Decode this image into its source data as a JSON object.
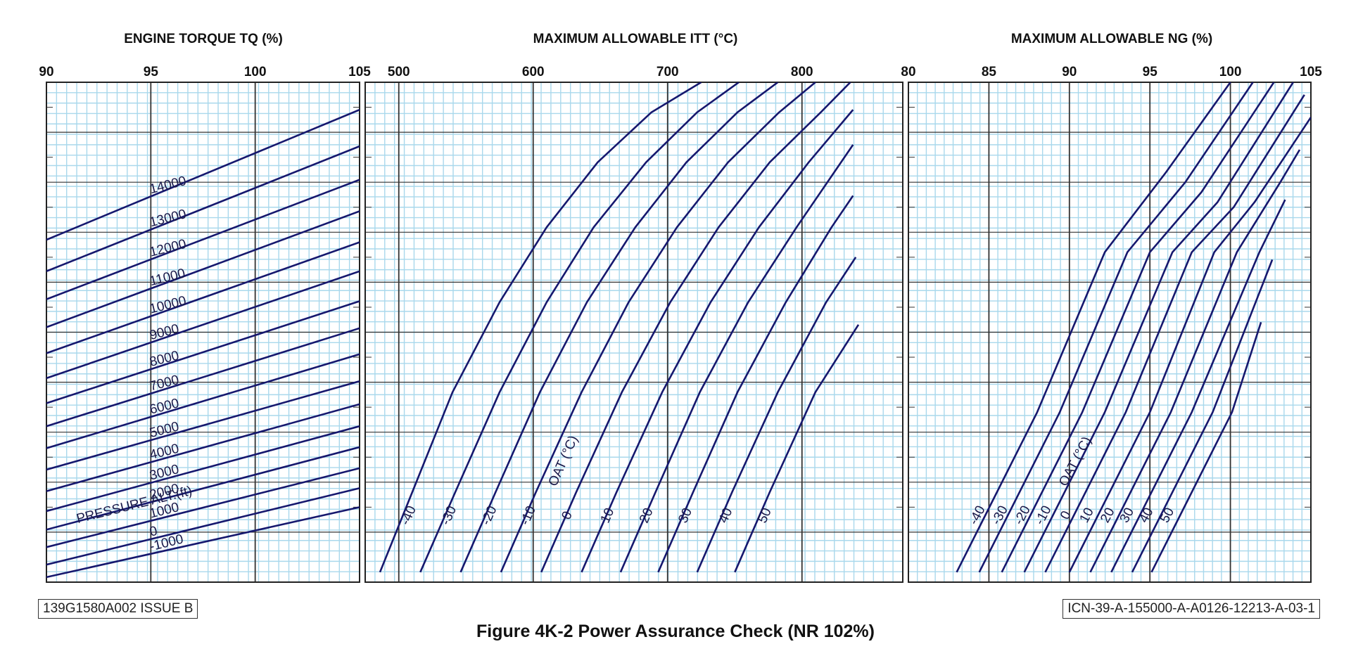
{
  "figure": {
    "caption": "Figure 4K-2  Power Assurance Check (NR 102%)",
    "doc_number": "139G1580A002 ISSUE B",
    "icn": "ICN-39-A-155000-A-A0126-12213-A-03-1"
  },
  "colors": {
    "curve": "#16186e",
    "minor_grid": "#a9d8ec",
    "major_grid": "#333333",
    "frame": "#222222"
  },
  "chart_data": [
    {
      "id": "torque",
      "type": "line",
      "title": "ENGINE TORQUE TQ (%)",
      "xlim": [
        90,
        105
      ],
      "xticks": [
        90,
        95,
        100,
        105
      ],
      "curve_label_title": "PRESSURE ALT.(ft)",
      "series": [
        {
          "name": "14000",
          "x": [
            90,
            105
          ],
          "y": [
            0.685,
            0.945
          ]
        },
        {
          "name": "13000",
          "x": [
            90,
            105
          ],
          "y": [
            0.622,
            0.872
          ]
        },
        {
          "name": "12000",
          "x": [
            90,
            105
          ],
          "y": [
            0.566,
            0.805
          ]
        },
        {
          "name": "11000",
          "x": [
            90,
            105
          ],
          "y": [
            0.51,
            0.742
          ]
        },
        {
          "name": "10000",
          "x": [
            90,
            105
          ],
          "y": [
            0.458,
            0.68
          ]
        },
        {
          "name": "9000",
          "x": [
            90,
            105
          ],
          "y": [
            0.408,
            0.622
          ]
        },
        {
          "name": "8000",
          "x": [
            90,
            105
          ],
          "y": [
            0.358,
            0.562
          ]
        },
        {
          "name": "7000",
          "x": [
            90,
            105
          ],
          "y": [
            0.312,
            0.508
          ]
        },
        {
          "name": "6000",
          "x": [
            90,
            105
          ],
          "y": [
            0.268,
            0.456
          ]
        },
        {
          "name": "5000",
          "x": [
            90,
            105
          ],
          "y": [
            0.225,
            0.402
          ]
        },
        {
          "name": "4000",
          "x": [
            90,
            105
          ],
          "y": [
            0.182,
            0.356
          ]
        },
        {
          "name": "3000",
          "x": [
            90,
            105
          ],
          "y": [
            0.142,
            0.312
          ]
        },
        {
          "name": "2000",
          "x": [
            90,
            105
          ],
          "y": [
            0.105,
            0.27
          ]
        },
        {
          "name": "1000",
          "x": [
            90,
            105
          ],
          "y": [
            0.07,
            0.228
          ]
        },
        {
          "name": "0",
          "x": [
            90,
            105
          ],
          "y": [
            0.035,
            0.188
          ]
        },
        {
          "name": "-1000",
          "x": [
            90,
            105
          ],
          "y": [
            0.01,
            0.15
          ]
        }
      ],
      "label_positions": [
        {
          "name": "14000",
          "x": 95.0
        },
        {
          "name": "13000",
          "x": 95.0
        },
        {
          "name": "12000",
          "x": 95.0
        },
        {
          "name": "11000",
          "x": 95.0
        },
        {
          "name": "10000",
          "x": 95.0
        },
        {
          "name": "9000",
          "x": 95.0
        },
        {
          "name": "8000",
          "x": 95.0
        },
        {
          "name": "7000",
          "x": 95.0
        },
        {
          "name": "6000",
          "x": 95.0
        },
        {
          "name": "5000",
          "x": 95.0
        },
        {
          "name": "4000",
          "x": 95.0
        },
        {
          "name": "3000",
          "x": 95.0
        },
        {
          "name": "2000",
          "x": 95.0
        },
        {
          "name": "1000",
          "x": 95.0
        },
        {
          "name": "0",
          "x": 95.0
        },
        {
          "name": "-1000",
          "x": 95.0
        }
      ]
    },
    {
      "id": "itt",
      "type": "line",
      "title": "MAXIMUM ALLOWABLE ITT (°C)",
      "xlim": [
        475,
        875
      ],
      "xticks": [
        500,
        600,
        700,
        800
      ],
      "curve_label_title": "OAT (°C)",
      "series": [
        {
          "name": "-40",
          "x": [
            486,
            510,
            540,
            575,
            610,
            648,
            688,
            725
          ],
          "y": [
            0.02,
            0.18,
            0.38,
            0.56,
            0.71,
            0.84,
            0.94,
            1.0
          ]
        },
        {
          "name": "-30",
          "x": [
            516,
            542,
            575,
            610,
            645,
            684,
            722,
            753
          ],
          "y": [
            0.02,
            0.18,
            0.38,
            0.56,
            0.71,
            0.84,
            0.94,
            1.0
          ]
        },
        {
          "name": "-20",
          "x": [
            546,
            572,
            605,
            640,
            676,
            714,
            752,
            782
          ],
          "y": [
            0.02,
            0.18,
            0.38,
            0.56,
            0.71,
            0.84,
            0.94,
            1.0
          ]
        },
        {
          "name": "-10",
          "x": [
            576,
            602,
            636,
            671,
            707,
            745,
            783,
            810
          ],
          "y": [
            0.02,
            0.18,
            0.38,
            0.56,
            0.71,
            0.84,
            0.94,
            1.0
          ]
        },
        {
          "name": "0",
          "x": [
            606,
            632,
            666,
            702,
            738,
            776,
            814,
            836
          ],
          "y": [
            0.02,
            0.18,
            0.38,
            0.56,
            0.71,
            0.84,
            0.94,
            1.0
          ]
        },
        {
          "name": "10",
          "x": [
            636,
            662,
            696,
            732,
            768,
            805,
            838
          ],
          "y": [
            0.02,
            0.18,
            0.38,
            0.56,
            0.71,
            0.84,
            0.945
          ]
        },
        {
          "name": "20",
          "x": [
            665,
            691,
            724,
            760,
            796,
            838
          ],
          "y": [
            0.02,
            0.18,
            0.38,
            0.56,
            0.71,
            0.875
          ]
        },
        {
          "name": "30",
          "x": [
            693,
            719,
            752,
            788,
            822,
            838
          ],
          "y": [
            0.02,
            0.18,
            0.38,
            0.56,
            0.71,
            0.773
          ]
        },
        {
          "name": "40",
          "x": [
            722,
            748,
            782,
            818,
            840
          ],
          "y": [
            0.02,
            0.18,
            0.38,
            0.56,
            0.65
          ]
        },
        {
          "name": "50",
          "x": [
            750,
            776,
            810,
            842
          ],
          "y": [
            0.02,
            0.18,
            0.38,
            0.515
          ]
        }
      ],
      "label_positions": [
        {
          "name": "-40",
          "x": 510
        },
        {
          "name": "-30",
          "x": 540
        },
        {
          "name": "-20",
          "x": 570
        },
        {
          "name": "-10",
          "x": 599
        },
        {
          "name": "0",
          "x": 628
        },
        {
          "name": "10",
          "x": 658
        },
        {
          "name": "20",
          "x": 687
        },
        {
          "name": "30",
          "x": 716
        },
        {
          "name": "40",
          "x": 746
        },
        {
          "name": "50",
          "x": 775
        }
      ]
    },
    {
      "id": "ng",
      "type": "line",
      "title": "MAXIMUM ALLOWABLE NG (%)",
      "xlim": [
        80,
        105
      ],
      "xticks": [
        80,
        85,
        90,
        95,
        100,
        105
      ],
      "curve_label_title": "OAT (°C)",
      "series": [
        {
          "name": "-40",
          "x": [
            83.0,
            88.0,
            92.2,
            96.0,
            100.0
          ],
          "y": [
            0.02,
            0.34,
            0.66,
            0.82,
            1.0
          ]
        },
        {
          "name": "-30",
          "x": [
            84.4,
            89.4,
            93.6,
            97.2,
            101.4
          ],
          "y": [
            0.02,
            0.34,
            0.66,
            0.8,
            1.0
          ]
        },
        {
          "name": "-20",
          "x": [
            85.8,
            90.8,
            95.0,
            98.2,
            102.7
          ],
          "y": [
            0.02,
            0.34,
            0.66,
            0.78,
            1.0
          ]
        },
        {
          "name": "-10",
          "x": [
            87.2,
            92.2,
            96.4,
            99.2,
            103.9
          ],
          "y": [
            0.02,
            0.34,
            0.66,
            0.76,
            1.0
          ]
        },
        {
          "name": "0",
          "x": [
            88.5,
            93.5,
            97.6,
            100.2,
            104.6
          ],
          "y": [
            0.02,
            0.34,
            0.66,
            0.75,
            0.975
          ]
        },
        {
          "name": "10",
          "x": [
            90.0,
            95.0,
            99.0,
            101.5,
            105.0
          ],
          "y": [
            0.02,
            0.34,
            0.66,
            0.76,
            0.93
          ]
        },
        {
          "name": "20",
          "x": [
            91.3,
            96.3,
            100.4,
            103.1,
            104.3
          ],
          "y": [
            0.02,
            0.34,
            0.66,
            0.8,
            0.865
          ]
        },
        {
          "name": "30",
          "x": [
            92.6,
            97.6,
            101.8,
            103.4
          ],
          "y": [
            0.02,
            0.34,
            0.66,
            0.765
          ]
        },
        {
          "name": "40",
          "x": [
            93.9,
            98.9,
            102.6
          ],
          "y": [
            0.02,
            0.34,
            0.645
          ]
        },
        {
          "name": "50",
          "x": [
            95.1,
            100.1,
            101.9
          ],
          "y": [
            0.02,
            0.34,
            0.52
          ]
        }
      ],
      "label_positions": [
        {
          "name": "-40",
          "x": 84.5
        },
        {
          "name": "-30",
          "x": 85.9
        },
        {
          "name": "-20",
          "x": 87.3
        },
        {
          "name": "-10",
          "x": 88.6
        },
        {
          "name": "0",
          "x": 90.0
        },
        {
          "name": "10",
          "x": 91.3
        },
        {
          "name": "20",
          "x": 92.6
        },
        {
          "name": "30",
          "x": 93.8
        },
        {
          "name": "40",
          "x": 95.0
        },
        {
          "name": "50",
          "x": 96.3
        }
      ]
    }
  ]
}
